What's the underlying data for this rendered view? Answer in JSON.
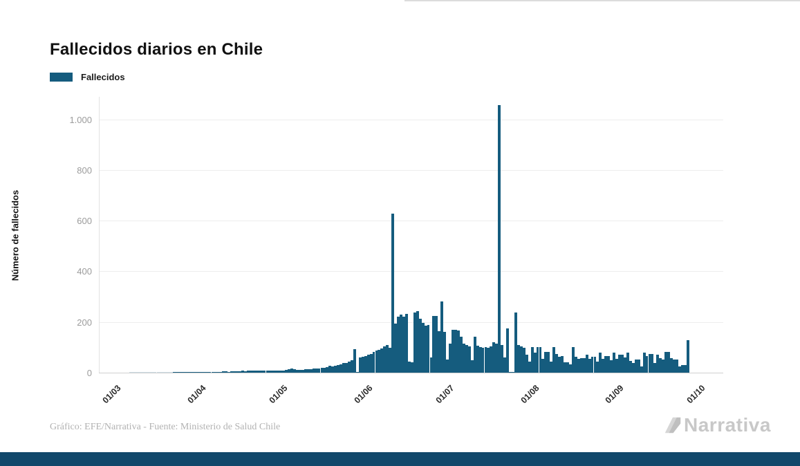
{
  "page": {
    "title": "Fallecidos diarios en Chile",
    "footer_credit": "Gráfico: EFE/Narrativa - Fuente: Ministerio de Salud Chile",
    "brand": "Narrativa"
  },
  "legend": {
    "label": "Fallecidos"
  },
  "colors": {
    "bar": "#155c7e",
    "grid": "#ededed",
    "baseline": "#cfcfcf",
    "y_tick_text": "#9b9b9b",
    "x_tick_text": "#2b2b2b",
    "title_text": "#111111",
    "footer_text": "#b2b2b2",
    "logo_gray": "#c8c8c8",
    "bottom_bar": "#11486b"
  },
  "chart_data": {
    "type": "bar",
    "title": "Fallecidos diarios en Chile",
    "series_name": "Fallecidos",
    "xlabel": "",
    "ylabel": "Número de fallecidos",
    "ylim": [
      0,
      1100
    ],
    "grid": "horizontal",
    "legend_position": "top-left",
    "frequency": "daily",
    "start_date": "04/03",
    "end_date": "24/09",
    "y_ticks": [
      {
        "label": "0",
        "value": 0
      },
      {
        "label": "200",
        "value": 200
      },
      {
        "label": "400",
        "value": 400
      },
      {
        "label": "600",
        "value": 600
      },
      {
        "label": "800",
        "value": 800
      },
      {
        "label": "1.000",
        "value": 1000
      }
    ],
    "x_ticks": [
      {
        "label": "01/03",
        "day_offset": -3
      },
      {
        "label": "01/04",
        "day_offset": 28
      },
      {
        "label": "01/05",
        "day_offset": 58
      },
      {
        "label": "01/06",
        "day_offset": 89
      },
      {
        "label": "01/07",
        "day_offset": 119
      },
      {
        "label": "01/08",
        "day_offset": 150
      },
      {
        "label": "01/09",
        "day_offset": 181
      },
      {
        "label": "01/10",
        "day_offset": 211
      }
    ],
    "values": [
      0,
      0,
      0,
      0,
      0,
      0,
      0,
      0,
      0,
      0,
      0,
      0,
      0,
      0,
      0,
      0,
      1,
      1,
      1,
      1,
      1,
      2,
      1,
      2,
      2,
      2,
      2,
      2,
      3,
      3,
      4,
      4,
      3,
      4,
      5,
      5,
      4,
      5,
      6,
      5,
      6,
      8,
      6,
      7,
      9,
      8,
      7,
      9,
      8,
      7,
      8,
      7,
      8,
      9,
      8,
      9,
      9,
      10,
      14,
      17,
      15,
      12,
      11,
      11,
      13,
      15,
      14,
      16,
      17,
      16,
      19,
      20,
      22,
      26,
      25,
      28,
      31,
      33,
      37,
      39,
      45,
      48,
      93,
      2,
      60,
      63,
      66,
      70,
      75,
      83,
      88,
      91,
      96,
      103,
      108,
      98,
      628,
      195,
      220,
      228,
      222,
      232,
      45,
      40,
      237,
      242,
      213,
      196,
      185,
      188,
      60,
      224,
      224,
      165,
      280,
      161,
      52,
      115,
      169,
      169,
      166,
      142,
      115,
      110,
      105,
      48,
      142,
      107,
      100,
      97,
      100,
      98,
      104,
      120,
      115,
      1057,
      110,
      60,
      175,
      2,
      1,
      237,
      108,
      105,
      97,
      70,
      45,
      100,
      79,
      100,
      100,
      55,
      83,
      83,
      45,
      100,
      75,
      62,
      66,
      42,
      42,
      33,
      100,
      62,
      55,
      58,
      58,
      70,
      55,
      62,
      62,
      45,
      79,
      55,
      66,
      66,
      50,
      79,
      55,
      70,
      70,
      60,
      80,
      47,
      38,
      52,
      52,
      25,
      79,
      65,
      74,
      74,
      38,
      70,
      56,
      52,
      83,
      83,
      56,
      52,
      52,
      25,
      29,
      29,
      128
    ],
    "notable_points": [
      {
        "date": "25/05",
        "value": 93
      },
      {
        "date": "08/06",
        "value": 628
      },
      {
        "date": "26/06",
        "value": 280
      },
      {
        "date": "17/07",
        "value": 1057
      },
      {
        "date": "23/07",
        "value": 237
      },
      {
        "date": "24/09",
        "value": 128
      }
    ]
  }
}
